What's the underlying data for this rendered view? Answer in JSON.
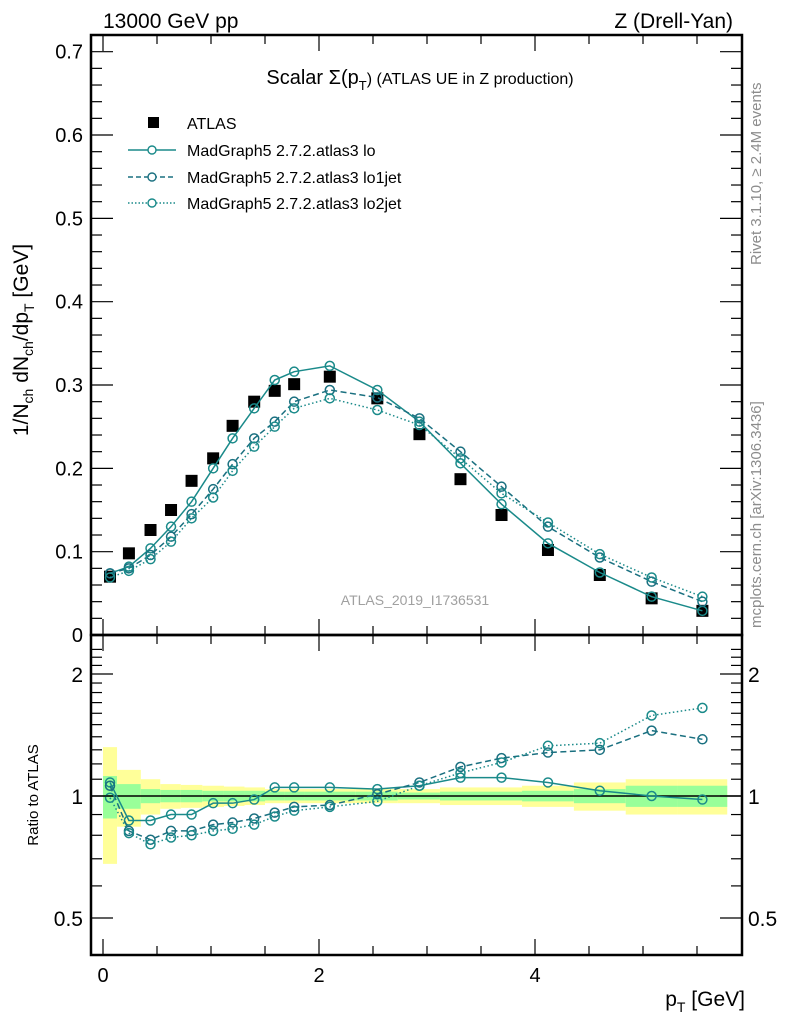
{
  "header": {
    "left": "13000 GeV pp",
    "right": "Z (Drell-Yan)"
  },
  "side_labels": {
    "rivet": "Rivet 3.1.10, ≥ 2.4M events",
    "mcplots": "mcplots.cern.ch [arXiv:1306.3436]"
  },
  "watermark": "ATLAS_2019_I1736531",
  "colors": {
    "data": "#000000",
    "mc": "#1a8a8a",
    "mc_dark": "#1a7080",
    "band_inner": "#99ff99",
    "band_outer": "#ffff99"
  },
  "chart_data": [
    {
      "type": "scatter",
      "title": "Scalar Σ(p_T) (ATLAS UE in Z production)",
      "title_main": "Scalar Σ(p",
      "title_sub": "T",
      "title_tail": ") (ATLAS UE in Z production)",
      "xlabel": "p_T [GeV]",
      "ylabel": "1/N_ch dN_ch/dp_T [GeV]",
      "xlim": [
        -0.12,
        5.9
      ],
      "ylim": [
        0,
        0.72
      ],
      "xticks": [
        0,
        2,
        4
      ],
      "yticks": [
        0,
        0.1,
        0.2,
        0.3,
        0.4,
        0.5,
        0.6,
        0.7
      ],
      "ytick_labels": [
        "0",
        "0.1",
        "0.2",
        "0.3",
        "0.4",
        "0.5",
        "0.6",
        "0.7"
      ],
      "legend_position": "top-left",
      "x": [
        0.065,
        0.24,
        0.44,
        0.63,
        0.82,
        1.02,
        1.2,
        1.4,
        1.59,
        1.77,
        2.1,
        2.54,
        2.93,
        3.31,
        3.69,
        4.12,
        4.6,
        5.08,
        5.55
      ],
      "series": [
        {
          "name": "ATLAS",
          "style": "square",
          "values": [
            0.07,
            0.098,
            0.126,
            0.15,
            0.185,
            0.212,
            0.251,
            0.28,
            0.293,
            0.301,
            0.31,
            0.284,
            0.241,
            0.187,
            0.144,
            0.102,
            0.072,
            0.044,
            0.029
          ]
        },
        {
          "name": "MadGraph5 2.7.2.atlas3 lo",
          "style": "solid",
          "values": [
            0.074,
            0.082,
            0.104,
            0.13,
            0.16,
            0.2,
            0.236,
            0.272,
            0.306,
            0.316,
            0.323,
            0.294,
            0.256,
            0.206,
            0.157,
            0.11,
            0.075,
            0.046,
            0.029
          ]
        },
        {
          "name": "MadGraph5 2.7.2.atlas3 lo1jet",
          "style": "dashed",
          "values": [
            0.074,
            0.08,
            0.096,
            0.118,
            0.145,
            0.175,
            0.205,
            0.236,
            0.256,
            0.28,
            0.294,
            0.285,
            0.26,
            0.22,
            0.178,
            0.13,
            0.093,
            0.064,
            0.04
          ]
        },
        {
          "name": "MadGraph5 2.7.2.atlas3 lo2jet",
          "style": "dotted",
          "values": [
            0.069,
            0.077,
            0.091,
            0.112,
            0.14,
            0.165,
            0.197,
            0.226,
            0.25,
            0.272,
            0.284,
            0.27,
            0.252,
            0.212,
            0.17,
            0.135,
            0.097,
            0.069,
            0.046
          ]
        }
      ]
    },
    {
      "type": "line",
      "title": "",
      "xlabel": "p_T [GeV]",
      "ylabel": "Ratio to ATLAS",
      "yscale": "log",
      "ylim": [
        0.42,
        2.35
      ],
      "xlim": [
        -0.12,
        5.9
      ],
      "xticks": [
        0,
        2,
        4
      ],
      "xtick_labels": [
        "0",
        "2",
        "4"
      ],
      "yticks": [
        0.5,
        1,
        2
      ],
      "ytick_labels": [
        "0.5",
        "1",
        "2"
      ],
      "x": [
        0.065,
        0.24,
        0.44,
        0.63,
        0.82,
        1.02,
        1.2,
        1.4,
        1.59,
        1.77,
        2.1,
        2.54,
        2.93,
        3.31,
        3.69,
        4.12,
        4.6,
        5.08,
        5.55
      ],
      "band_edges": [
        0.0,
        0.13,
        0.35,
        0.53,
        0.72,
        0.92,
        1.12,
        1.31,
        1.5,
        1.68,
        1.87,
        2.34,
        2.73,
        3.12,
        3.5,
        3.88,
        4.36,
        4.84,
        5.32,
        5.78
      ],
      "band_inner": [
        0.12,
        0.07,
        0.04,
        0.035,
        0.035,
        0.03,
        0.03,
        0.03,
        0.025,
        0.025,
        0.025,
        0.025,
        0.02,
        0.025,
        0.025,
        0.03,
        0.04,
        0.06,
        0.06
      ],
      "band_outer": [
        0.32,
        0.16,
        0.1,
        0.07,
        0.065,
        0.06,
        0.055,
        0.05,
        0.04,
        0.04,
        0.04,
        0.04,
        0.04,
        0.05,
        0.05,
        0.06,
        0.08,
        0.1,
        0.1
      ],
      "series": [
        {
          "name": "MadGraph5 2.7.2.atlas3 lo",
          "style": "solid",
          "values": [
            1.08,
            0.87,
            0.87,
            0.9,
            0.9,
            0.96,
            0.96,
            0.98,
            1.05,
            1.05,
            1.05,
            1.04,
            1.06,
            1.11,
            1.11,
            1.08,
            1.03,
            1.0,
            0.98
          ]
        },
        {
          "name": "MadGraph5 2.7.2.atlas3 lo1jet",
          "style": "dashed",
          "values": [
            1.06,
            0.82,
            0.78,
            0.82,
            0.82,
            0.85,
            0.86,
            0.88,
            0.91,
            0.94,
            0.95,
            1.01,
            1.08,
            1.18,
            1.24,
            1.28,
            1.3,
            1.45,
            1.38
          ]
        },
        {
          "name": "MadGraph5 2.7.2.atlas3 lo2jet",
          "style": "dotted",
          "values": [
            0.99,
            0.81,
            0.76,
            0.79,
            0.8,
            0.82,
            0.83,
            0.85,
            0.89,
            0.92,
            0.94,
            0.97,
            1.06,
            1.14,
            1.21,
            1.33,
            1.35,
            1.58,
            1.65
          ]
        }
      ]
    }
  ],
  "legend": [
    {
      "label": "ATLAS"
    },
    {
      "label": "MadGraph5 2.7.2.atlas3 lo"
    },
    {
      "label": "MadGraph5 2.7.2.atlas3 lo1jet"
    },
    {
      "label": "MadGraph5 2.7.2.atlas3 lo2jet"
    }
  ],
  "axis_labels": {
    "x_main": "p",
    "x_sub": "T",
    "x_tail": " [GeV]",
    "ratio_y": "Ratio to ATLAS"
  }
}
